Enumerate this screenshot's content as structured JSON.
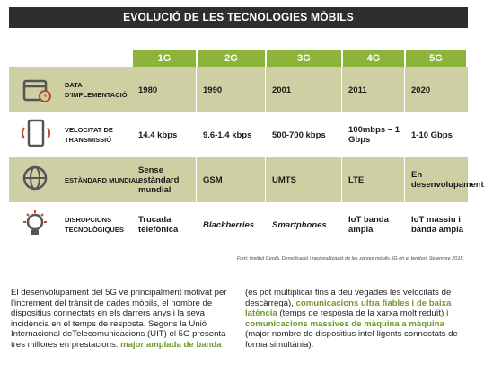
{
  "title": "EVOLUCIÓ DE LES TECNOLOGIES MÒBILS",
  "table": {
    "columns": [
      "1G",
      "2G",
      "3G",
      "4G",
      "5G"
    ],
    "rows": [
      {
        "label": "DATA D'IMPLEMENTACIÓ",
        "cells": [
          "1980",
          "1990",
          "2001",
          "2011",
          "2020"
        ]
      },
      {
        "label": "VELOCITAT DE TRANSMISSIÓ",
        "cells": [
          "14.4 kbps",
          "9.6-1.4 kbps",
          "500-700 kbps",
          "100mbps – 1 Gbps",
          "1-10 Gbps"
        ]
      },
      {
        "label": "ESTÀNDARD MUNDIAL",
        "cells": [
          "Sense estàndard mundial",
          "GSM",
          "UMTS",
          "LTE",
          "En desenvolupament"
        ]
      },
      {
        "label": "DISRUPCIONS TECNOLÒGIQUES",
        "cells": [
          "Trucada telefònica",
          "Blackberries",
          "Smartphones",
          "IoT banda ampla",
          "IoT massiu i banda ampla"
        ]
      }
    ]
  },
  "source": "Font: Institut Cerdà. Densificació i racionalització de les xarxes mòbils 5G en el territori. Setembre 2018.",
  "paragraph": [
    "El desenvolupament del 5G ve principalment motivat per l'increment del trànsit de dades mòbils, el nombre de dispositius connectats en els darrers anys i la seva incidència en el temps de resposta. Segons la Unió Internacional deTelecomunicacions (UIT) el 5G presenta tres millores en prestacions: ",
    "major amplada de banda",
    " (es pot multiplicar fins a deu vegades les velocitats de descàrrega), ",
    "comunicacions ultra fiables i de baixa latència",
    " (temps de resposta de la xarxa molt reduït) ",
    "i comunicacions massives de màquina a màquina",
    " (major nombre de dispositius intel·ligents connectats de forma simultània)."
  ]
}
